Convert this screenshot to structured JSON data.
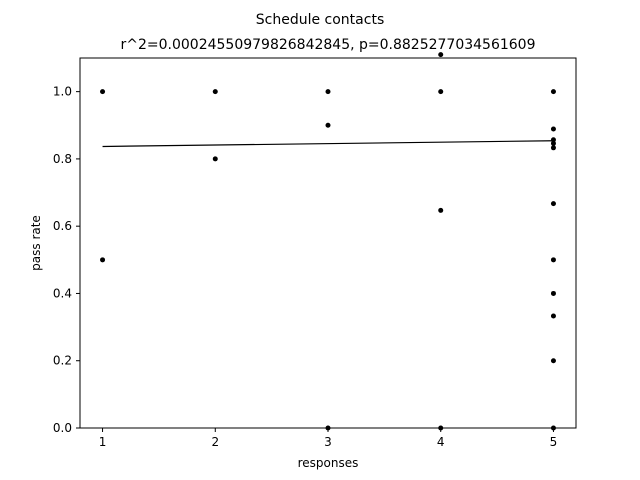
{
  "chart_data": {
    "type": "scatter",
    "title": "Schedule contacts",
    "subtitle": "r^2=0.00024550979826842845, p=0.8825277034561609",
    "xlabel": "responses",
    "ylabel": "pass rate",
    "xlim": [
      0.8,
      5.2
    ],
    "ylim": [
      0.0,
      1.1
    ],
    "xticks": [
      1,
      2,
      3,
      4,
      5
    ],
    "yticks": [
      0.0,
      0.2,
      0.4,
      0.6,
      0.8,
      1.0
    ],
    "ytick_labels": [
      "0.0",
      "0.2",
      "0.4",
      "0.6",
      "0.8",
      "1.0"
    ],
    "grid": false,
    "marker_color": "#000000",
    "line_color": "#000000",
    "points": [
      {
        "x": 1,
        "y": 1.0
      },
      {
        "x": 1,
        "y": 0.5
      },
      {
        "x": 2,
        "y": 1.0
      },
      {
        "x": 2,
        "y": 0.8
      },
      {
        "x": 3,
        "y": 1.0
      },
      {
        "x": 3,
        "y": 0.9
      },
      {
        "x": 3,
        "y": 0.0
      },
      {
        "x": 4,
        "y": 1.11
      },
      {
        "x": 4,
        "y": 1.0
      },
      {
        "x": 4,
        "y": 0.647
      },
      {
        "x": 4,
        "y": 0.0
      },
      {
        "x": 5,
        "y": 1.0
      },
      {
        "x": 5,
        "y": 0.889
      },
      {
        "x": 5,
        "y": 0.857
      },
      {
        "x": 5,
        "y": 0.846
      },
      {
        "x": 5,
        "y": 0.833
      },
      {
        "x": 5,
        "y": 0.667
      },
      {
        "x": 5,
        "y": 0.5
      },
      {
        "x": 5,
        "y": 0.4
      },
      {
        "x": 5,
        "y": 0.333
      },
      {
        "x": 5,
        "y": 0.2
      },
      {
        "x": 5,
        "y": 0.0
      }
    ],
    "fit_line": {
      "x": [
        1,
        5
      ],
      "y": [
        0.837,
        0.854
      ]
    }
  }
}
